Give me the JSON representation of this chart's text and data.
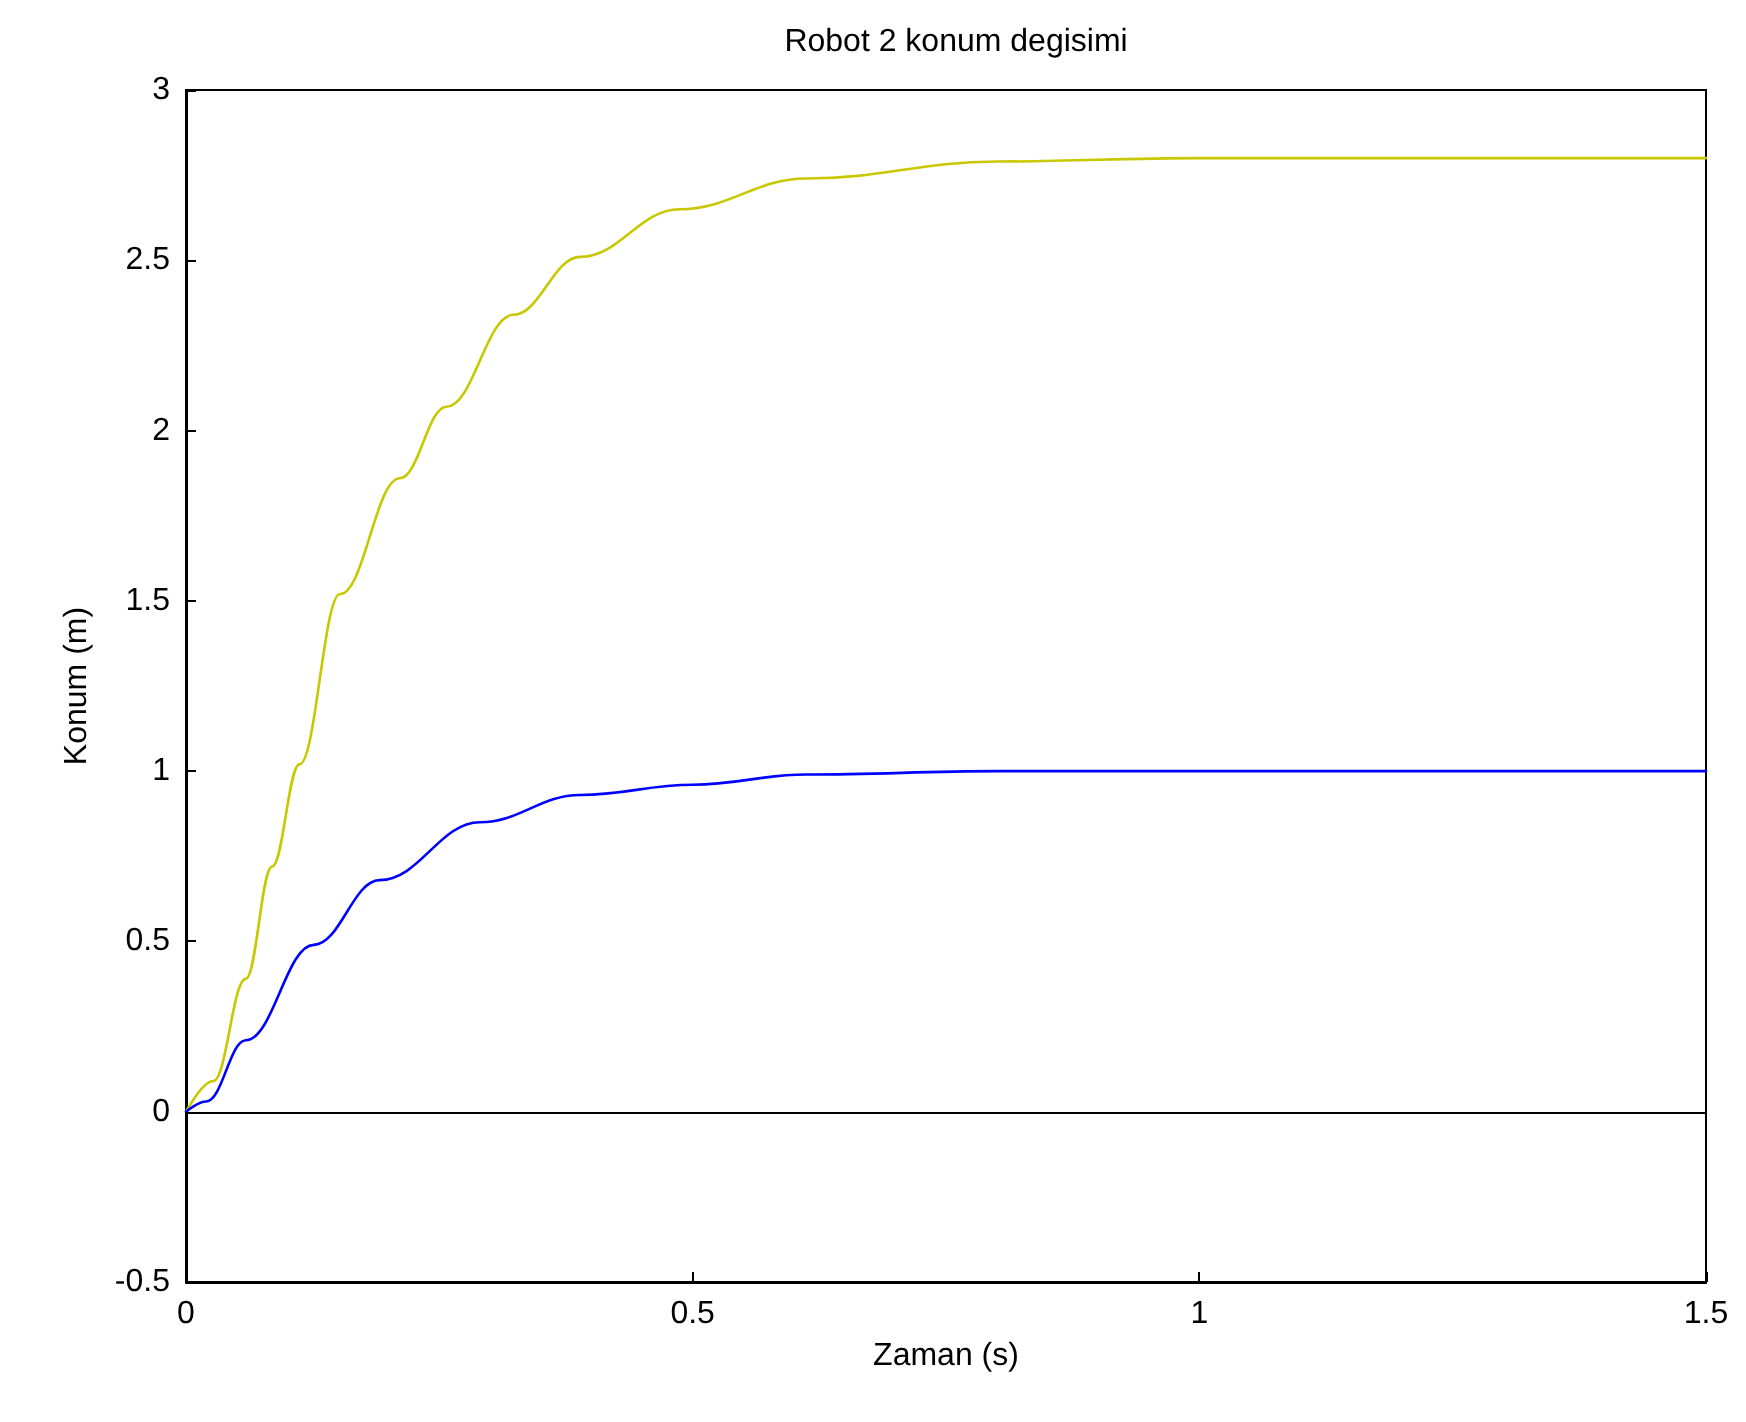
{
  "chart_data": {
    "type": "line",
    "title": "Robot 2 konum degisimi",
    "xlabel": "Zaman (s)",
    "ylabel": "Konum (m)",
    "xlim": [
      0,
      1.5
    ],
    "xticks": [
      0,
      0.5,
      1,
      1.5
    ],
    "ylim": [
      -0.5,
      3
    ],
    "yticks": [
      -0.5,
      0,
      0.5,
      1,
      1.5,
      2,
      2.5,
      3
    ],
    "grid": false,
    "marker": "none",
    "line_style": "solid",
    "ref_lines": [
      {
        "axis": "y",
        "value": 0,
        "color": "#000000"
      }
    ],
    "series": [
      {
        "color": "#c8c800",
        "x": [
          0,
          0.027,
          0.059,
          0.085,
          0.112,
          0.152,
          0.211,
          0.257,
          0.323,
          0.389,
          0.487,
          0.612,
          0.8,
          1.0,
          1.5
        ],
        "values": [
          0,
          0.09,
          0.39,
          0.72,
          1.02,
          1.52,
          1.86,
          2.07,
          2.34,
          2.51,
          2.65,
          2.74,
          2.79,
          2.8,
          2.8
        ]
      },
      {
        "color": "#0000ff",
        "x": [
          0,
          0.02,
          0.059,
          0.126,
          0.191,
          0.29,
          0.389,
          0.5,
          0.612,
          0.8,
          1.0,
          1.5
        ],
        "values": [
          0,
          0.03,
          0.21,
          0.49,
          0.68,
          0.85,
          0.93,
          0.96,
          0.99,
          1.0,
          1.0,
          1.0
        ]
      }
    ]
  }
}
